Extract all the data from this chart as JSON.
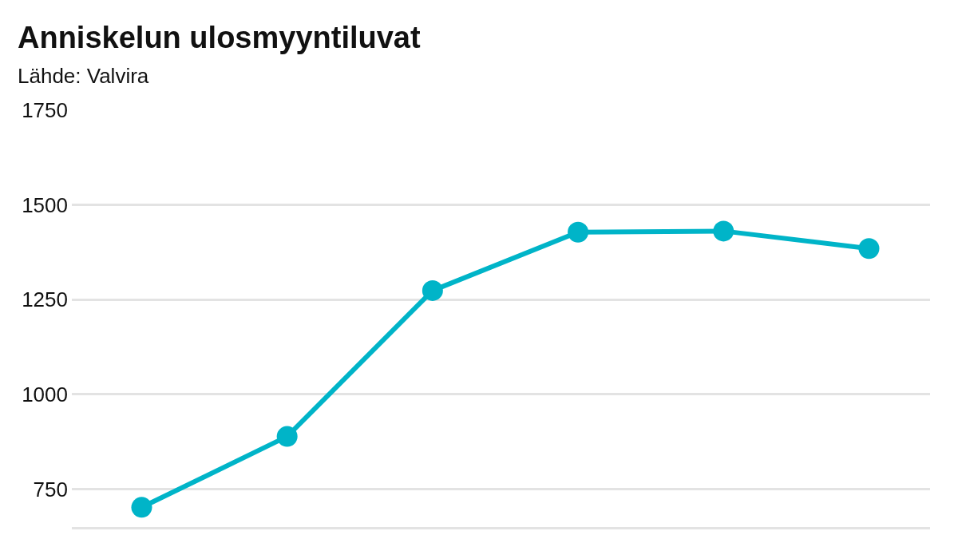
{
  "chart_data": {
    "type": "line",
    "title": "Anniskelun ulosmyyntiluvat",
    "subtitle": "Lähde: Valvira",
    "categories": [
      null,
      null,
      null,
      null,
      null,
      null
    ],
    "series": [
      {
        "color": "#00b4c8",
        "values": [
          702,
          889,
          1274,
          1428,
          1431,
          1385
        ]
      }
    ],
    "ylim": [
      650,
      1750
    ],
    "yticks": [
      750,
      1000,
      1250,
      1500,
      1750
    ],
    "grid": "y",
    "marker": "circle",
    "line_style": "solid",
    "legend": false,
    "tick_labels": "y"
  }
}
